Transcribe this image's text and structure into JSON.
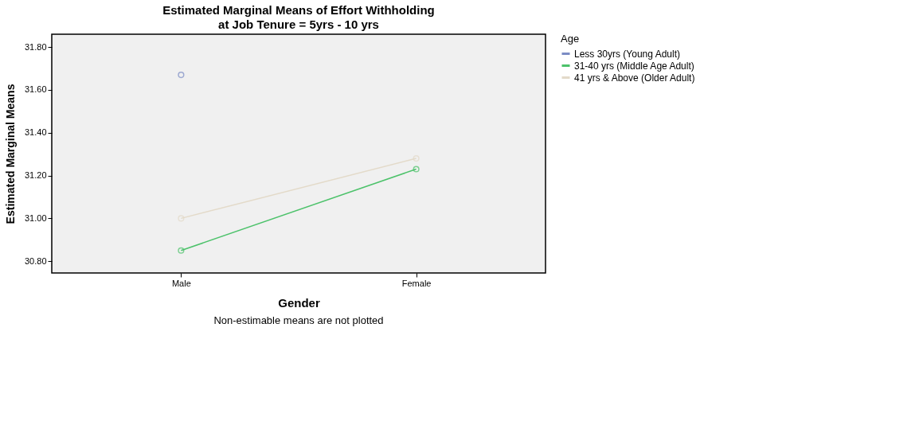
{
  "chart_data": {
    "type": "line",
    "title": "Estimated Marginal Means of Effort Withholding",
    "subtitle": "at Job Tenure = 5yrs - 10 yrs",
    "xlabel": "Gender",
    "ylabel": "Estimated Marginal Means",
    "legend_title": "Age",
    "categories": [
      "Male",
      "Female"
    ],
    "series": [
      {
        "name": "Less 30yrs (Young Adult)",
        "color": "#7b8cc4",
        "values": [
          31.67,
          null
        ]
      },
      {
        "name": "31-40 yrs (Middle Age Adult)",
        "color": "#4cc26a",
        "values": [
          30.85,
          31.23
        ]
      },
      {
        "name": "41 yrs & Above (Older Adult)",
        "color": "#e3dac9",
        "values": [
          31.0,
          31.28
        ]
      }
    ],
    "ylim": [
      30.745,
      31.86
    ],
    "yticks": [
      {
        "value": 30.8,
        "label": "30.80"
      },
      {
        "value": 31.0,
        "label": "31.00"
      },
      {
        "value": 31.2,
        "label": "31.20"
      },
      {
        "value": 31.4,
        "label": "31.40"
      },
      {
        "value": 31.6,
        "label": "31.60"
      },
      {
        "value": 31.8,
        "label": "31.80"
      }
    ],
    "grid": false,
    "legend": "top right",
    "marker": "circle",
    "line_style": "solid",
    "annotations": [
      "Non-estimable means are not plotted"
    ]
  }
}
